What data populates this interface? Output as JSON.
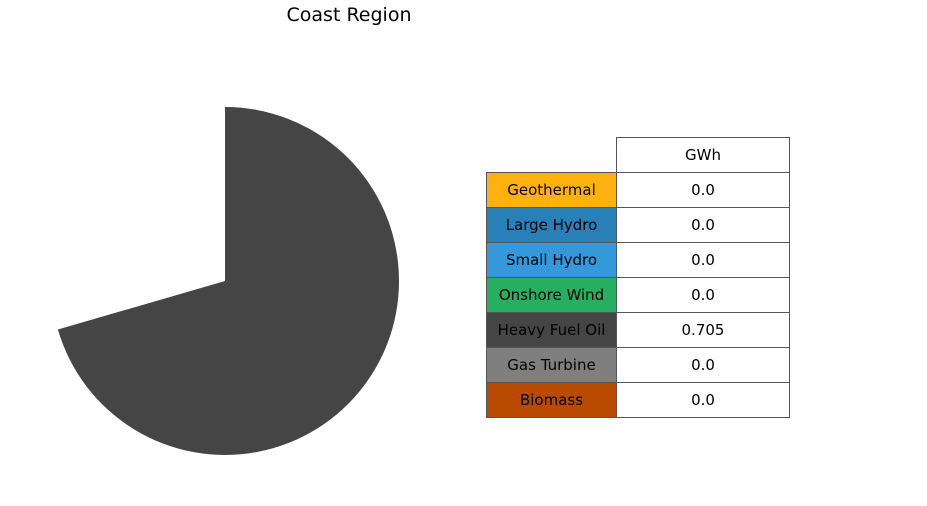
{
  "chart_data": {
    "type": "pie",
    "title": "Coast Region",
    "table_column_header": "GWh",
    "start_angle_deg": 90,
    "direction": "clockwise",
    "slices": [
      {
        "label": "Geothermal",
        "value": 0.0,
        "value_text": "0.0",
        "color": "#FFB20F"
      },
      {
        "label": "Large Hydro",
        "value": 0.0,
        "value_text": "0.0",
        "color": "#2980B9"
      },
      {
        "label": "Small Hydro",
        "value": 0.0,
        "value_text": "0.0",
        "color": "#3498DB"
      },
      {
        "label": "Onshore Wind",
        "value": 0.0,
        "value_text": "0.0",
        "color": "#27AE60"
      },
      {
        "label": "Heavy Fuel Oil",
        "value": 0.705,
        "value_text": "0.705",
        "color": "#454545"
      },
      {
        "label": "Gas Turbine",
        "value": 0.0,
        "value_text": "0.0",
        "color": "#7F7F7F"
      },
      {
        "label": "Biomass",
        "value": 0.0,
        "value_text": "0.0",
        "color": "#B94A00"
      }
    ]
  }
}
